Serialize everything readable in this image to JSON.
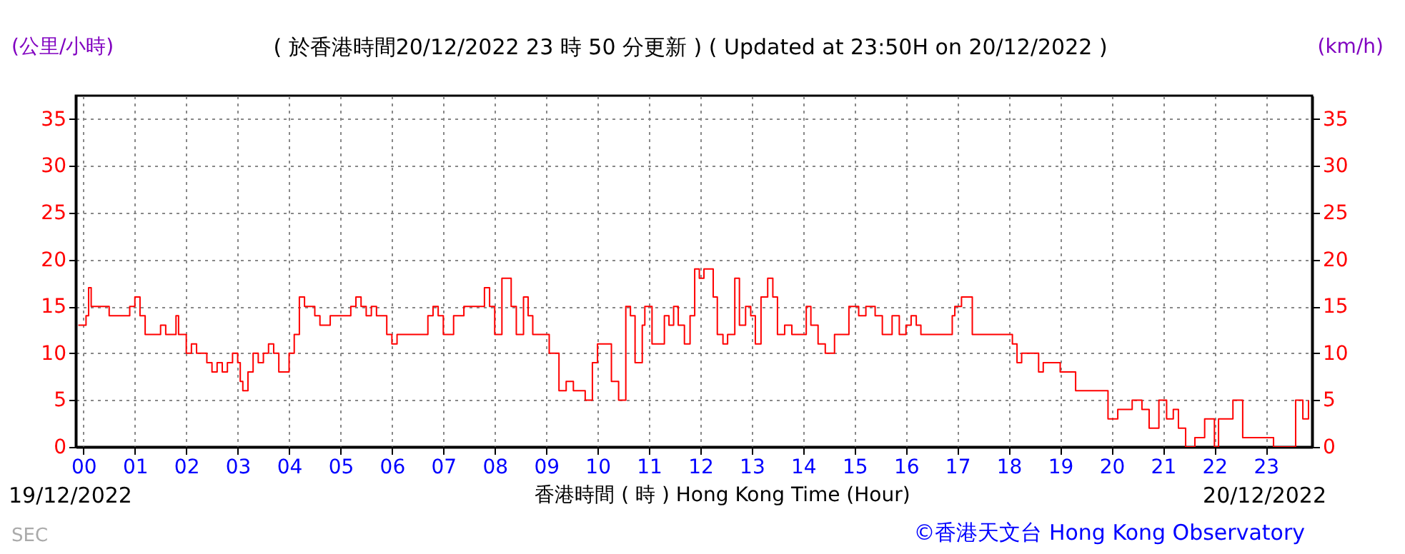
{
  "chart_data": {
    "type": "step",
    "title": "( 於香港時間20/12/2022 23 時 50 分更新 ) ( Updated at 23:50H on 20/12/2022 )",
    "xlabel": "香港時間 ( 時 ) Hong Kong Time (Hour)",
    "ylabel": "(公里/小時)",
    "y2label": "(km/h)",
    "annotations": [
      "19/12/2022",
      "20/12/2022",
      "SEC",
      "©香港天文台 Hong Kong Observatory"
    ],
    "xlim": [
      -0.15,
      23.9
    ],
    "ylim": [
      0,
      37.5
    ],
    "y2lim": [
      0,
      37.5
    ],
    "yticks": [
      0,
      5,
      10,
      15,
      20,
      25,
      30,
      35
    ],
    "y2ticks": [
      0,
      5,
      10,
      15,
      20,
      25,
      30,
      35
    ],
    "xticks": [
      {
        "value": 0,
        "label": "00"
      },
      {
        "value": 1,
        "label": "01"
      },
      {
        "value": 2,
        "label": "02"
      },
      {
        "value": 3,
        "label": "03"
      },
      {
        "value": 4,
        "label": "04"
      },
      {
        "value": 5,
        "label": "05"
      },
      {
        "value": 6,
        "label": "06"
      },
      {
        "value": 7,
        "label": "07"
      },
      {
        "value": 8,
        "label": "08"
      },
      {
        "value": 9,
        "label": "09"
      },
      {
        "value": 10,
        "label": "10"
      },
      {
        "value": 11,
        "label": "11"
      },
      {
        "value": 12,
        "label": "12"
      },
      {
        "value": 13,
        "label": "13"
      },
      {
        "value": 14,
        "label": "14"
      },
      {
        "value": 15,
        "label": "15"
      },
      {
        "value": 16,
        "label": "16"
      },
      {
        "value": 17,
        "label": "17"
      },
      {
        "value": 18,
        "label": "18"
      },
      {
        "value": 19,
        "label": "19"
      },
      {
        "value": 20,
        "label": "20"
      },
      {
        "value": 21,
        "label": "21"
      },
      {
        "value": 22,
        "label": "22"
      },
      {
        "value": 23,
        "label": "23"
      }
    ],
    "grid": true,
    "line_style": "solid",
    "marker": "none",
    "series": [
      {
        "color": "#ff0000",
        "x": [
          -0.1,
          0.05,
          0.1,
          0.15,
          0.5,
          0.9,
          1.0,
          1.1,
          1.2,
          1.5,
          1.6,
          1.8,
          1.85,
          2.0,
          2.1,
          2.2,
          2.4,
          2.5,
          2.6,
          2.7,
          2.8,
          2.9,
          3.0,
          3.05,
          3.1,
          3.2,
          3.3,
          3.4,
          3.5,
          3.6,
          3.7,
          3.8,
          4.0,
          4.1,
          4.2,
          4.3,
          4.5,
          4.6,
          4.8,
          5.2,
          5.3,
          5.4,
          5.5,
          5.6,
          5.7,
          5.9,
          6.0,
          6.1,
          6.7,
          6.8,
          6.9,
          7.0,
          7.2,
          7.4,
          7.8,
          7.9,
          8.0,
          8.14,
          8.32,
          8.42,
          8.56,
          8.65,
          8.74,
          9.06,
          9.25,
          9.39,
          9.53,
          9.76,
          9.9,
          10.0,
          10.27,
          10.41,
          10.55,
          10.64,
          10.73,
          10.87,
          10.92,
          11.06,
          11.3,
          11.39,
          11.48,
          11.57,
          11.69,
          11.8,
          11.89,
          11.98,
          12.07,
          12.25,
          12.33,
          12.44,
          12.53,
          12.67,
          12.76,
          12.88,
          12.98,
          13.07,
          13.18,
          13.31,
          13.41,
          13.5,
          13.64,
          13.78,
          14.06,
          14.15,
          14.29,
          14.43,
          14.61,
          14.89,
          15.08,
          15.22,
          15.4,
          15.54,
          15.73,
          15.87,
          16.0,
          16.1,
          16.2,
          16.29,
          16.9,
          16.95,
          17.08,
          17.29,
          18.07,
          18.16,
          18.25,
          18.58,
          18.67,
          19.0,
          19.3,
          19.93,
          20.12,
          20.4,
          20.59,
          20.73,
          20.92,
          21.07,
          21.2,
          21.3,
          21.44,
          21.62,
          21.81,
          22.0,
          22.08,
          22.36,
          22.55,
          23.15,
          23.39,
          23.58,
          23.72,
          23.83
        ],
        "values": [
          13,
          14,
          17,
          15,
          14,
          15,
          16,
          14,
          12,
          13,
          12,
          14,
          12,
          10,
          11,
          10,
          9,
          8,
          9,
          8,
          9,
          10,
          9,
          7,
          6,
          8,
          10,
          9,
          10,
          11,
          10,
          8,
          10,
          12,
          16,
          15,
          14,
          13,
          14,
          15,
          16,
          15,
          14,
          15,
          14,
          12,
          11,
          12,
          14,
          15,
          14,
          12,
          14,
          15,
          17,
          15,
          12,
          18,
          15,
          12,
          16,
          14,
          12,
          10,
          6,
          7,
          6,
          5,
          9,
          11,
          7,
          5,
          15,
          14,
          9,
          13,
          15,
          11,
          14,
          13,
          15,
          13,
          11,
          14,
          19,
          18,
          19,
          16,
          12,
          11,
          12,
          18,
          13,
          15,
          14,
          11,
          16,
          18,
          16,
          12,
          13,
          12,
          15,
          13,
          11,
          10,
          12,
          15,
          14,
          15,
          14,
          12,
          14,
          12,
          13,
          14,
          13,
          12,
          14,
          15,
          16,
          12,
          11,
          9,
          10,
          8,
          9,
          8,
          6,
          3,
          4,
          5,
          4,
          2,
          5,
          3,
          4,
          2,
          0,
          1,
          3,
          0,
          3,
          5,
          1,
          0,
          0,
          5,
          3,
          5
        ]
      }
    ]
  }
}
